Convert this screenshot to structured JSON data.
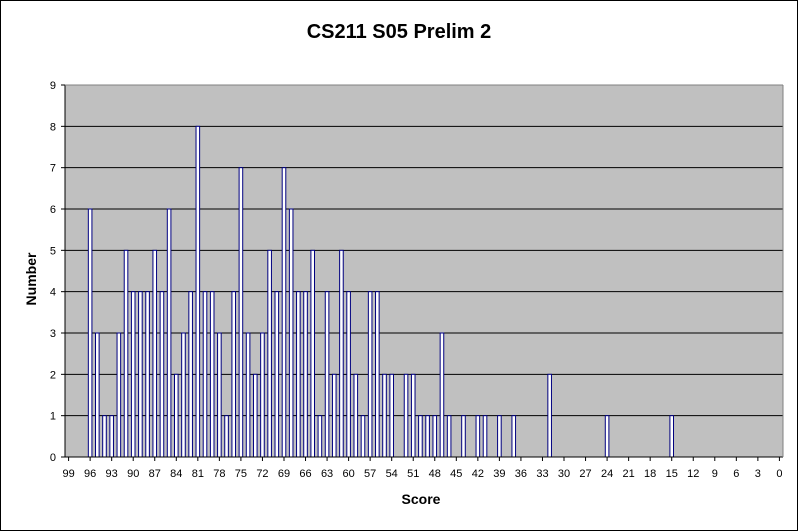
{
  "chart_data": {
    "type": "bar",
    "title": "CS211 S05 Prelim 2",
    "xlabel": "Score",
    "ylabel": "Number",
    "ylim": [
      0,
      9
    ],
    "y_ticks": [
      0,
      1,
      2,
      3,
      4,
      5,
      6,
      7,
      8,
      9
    ],
    "x_ticks": [
      99,
      96,
      93,
      90,
      87,
      84,
      81,
      78,
      75,
      72,
      69,
      66,
      63,
      60,
      57,
      54,
      51,
      48,
      45,
      42,
      39,
      36,
      33,
      30,
      27,
      24,
      21,
      18,
      15,
      12,
      9,
      6,
      3,
      0
    ],
    "x_range": [
      100,
      0
    ],
    "grid": true,
    "legend": "none",
    "plot_background": "#c0c0c0",
    "bar_color": "#000080",
    "bar_fill": "#ffffff",
    "scores": [
      96,
      95,
      94,
      93,
      92,
      91,
      90,
      89,
      88,
      87,
      86,
      85,
      84,
      83,
      82,
      81,
      80,
      79,
      78,
      77,
      76,
      75,
      74,
      73,
      72,
      71,
      70,
      69,
      68,
      67,
      66,
      65,
      64,
      63,
      62,
      61,
      60,
      59,
      58,
      57,
      56,
      55,
      54,
      52,
      51,
      50,
      49,
      48,
      47,
      46,
      44,
      42,
      41,
      39,
      37,
      32,
      24,
      15
    ],
    "values": [
      6,
      3,
      1,
      1,
      3,
      5,
      4,
      4,
      4,
      5,
      4,
      6,
      2,
      3,
      4,
      8,
      4,
      4,
      3,
      1,
      4,
      7,
      3,
      2,
      3,
      5,
      4,
      7,
      6,
      4,
      4,
      5,
      1,
      4,
      2,
      5,
      4,
      2,
      1,
      4,
      4,
      2,
      2,
      2,
      2,
      1,
      1,
      1,
      3,
      1,
      1,
      1,
      1,
      1,
      1,
      2,
      1,
      1
    ]
  }
}
